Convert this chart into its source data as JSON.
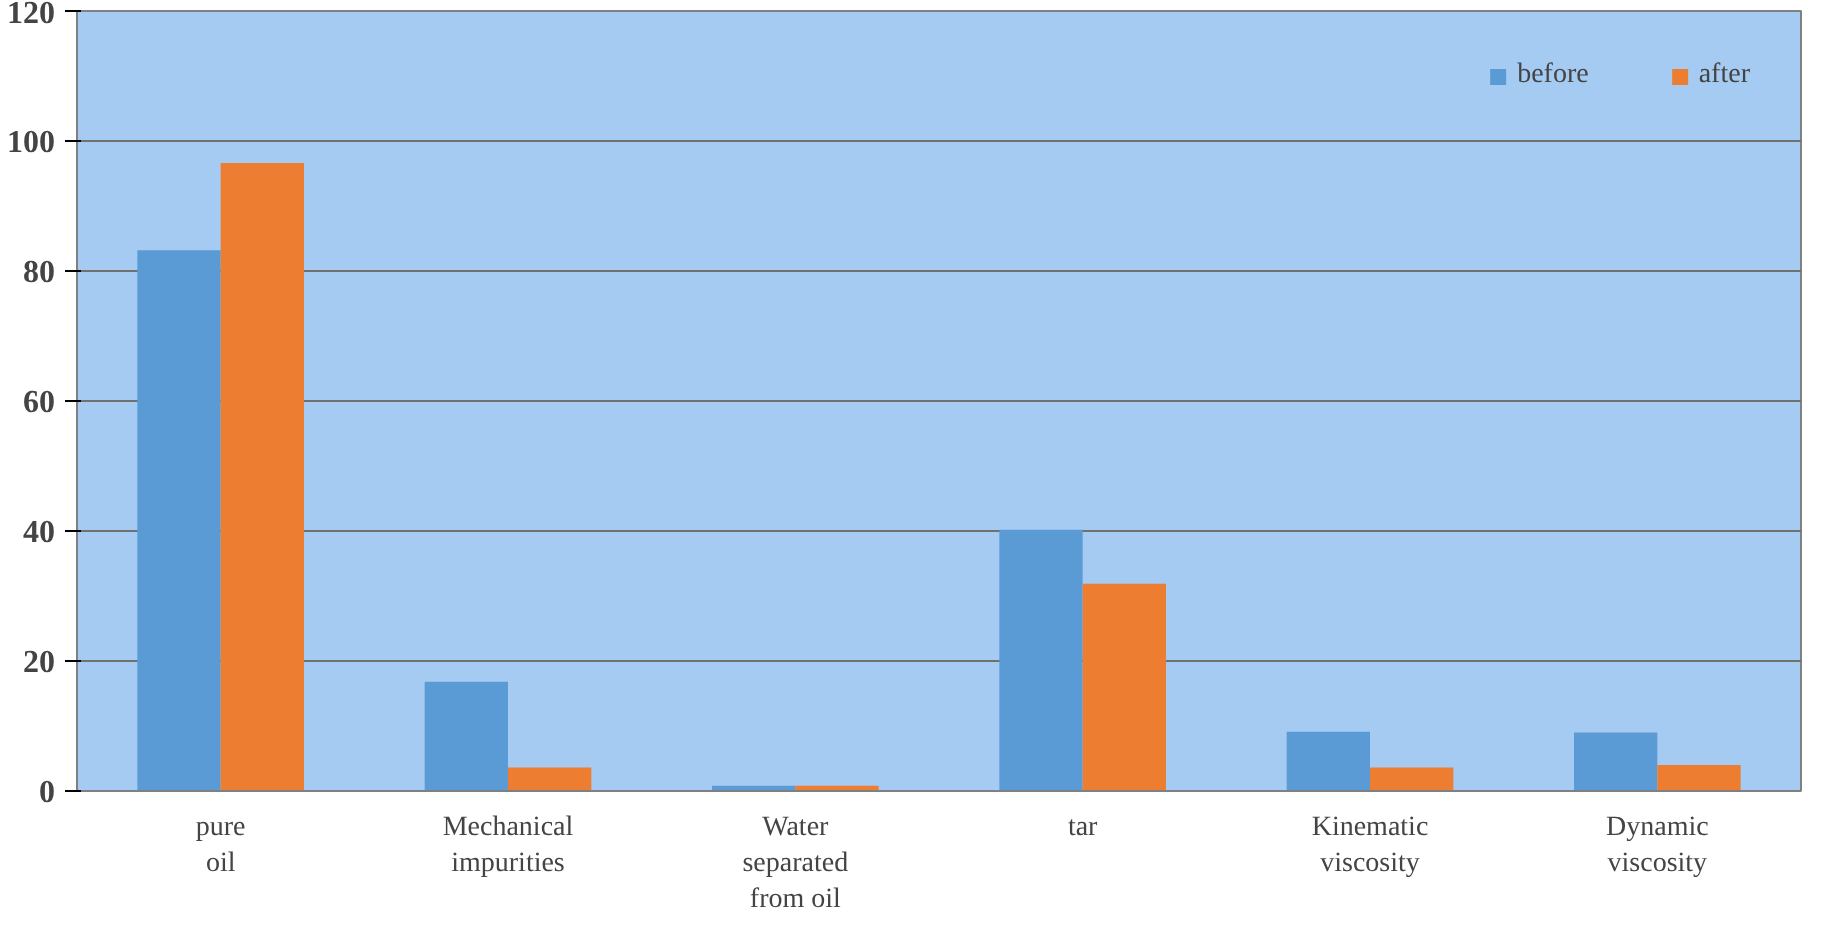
{
  "chart_data": {
    "type": "bar",
    "categories": [
      "pure\noil",
      "Mechanical\nimpurities",
      "Water\nseparated\nfrom oil",
      "tar",
      "Kinematic\nviscosity",
      "Dynamic\nviscosity"
    ],
    "series": [
      {
        "name": "before",
        "color": "#5b9bd5",
        "values": [
          83.2,
          16.8,
          0.8,
          40.2,
          9.1,
          9
        ]
      },
      {
        "name": "after",
        "color": "#ed7d31",
        "values": [
          96.6,
          3.6,
          0.8,
          31.9,
          3.6,
          4
        ]
      }
    ],
    "ylim": [
      0,
      120
    ],
    "yticks": [
      0,
      20,
      40,
      60,
      80,
      100,
      120
    ],
    "grid": "y",
    "legend": "top right"
  }
}
